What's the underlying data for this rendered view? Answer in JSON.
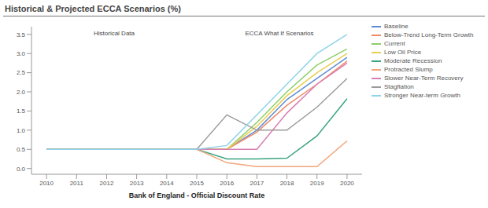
{
  "chart_data": {
    "type": "line",
    "title": "Historical & Projected ECCA Scenarios (%)",
    "x_label": "Bank of England - Official Discount Rate",
    "annotations": [
      "Historical Data",
      "ECCA What If Scenarios"
    ],
    "x": [
      2010,
      2011,
      2012,
      2013,
      2014,
      2015,
      2016,
      2017,
      2018,
      2019,
      2020
    ],
    "xlim": [
      2009.5,
      2020.5
    ],
    "xticks": [
      2010,
      2011,
      2012,
      2013,
      2014,
      2015,
      2016,
      2017,
      2018,
      2019,
      2020
    ],
    "ylim": [
      -0.15,
      3.7
    ],
    "yticks": [
      {
        "value": 0,
        "label": "0.0"
      },
      0.5,
      {
        "value": 1,
        "label": "1.0"
      },
      1.5,
      {
        "value": 2,
        "label": "2.0"
      },
      2.5,
      {
        "value": 3,
        "label": "3.0"
      },
      3.5
    ],
    "grid": false,
    "legend": "right",
    "series": [
      {
        "name": "Baseline",
        "color": "#5f8dd3",
        "values": [
          0.5,
          0.5,
          0.5,
          0.5,
          0.5,
          0.5,
          0.5,
          1.0,
          1.8,
          2.35,
          2.9
        ]
      },
      {
        "name": "Below-Trend Long-Term Growth",
        "color": "#f08a6a",
        "values": [
          0.5,
          0.5,
          0.5,
          0.5,
          0.5,
          0.5,
          0.5,
          0.95,
          1.65,
          2.2,
          2.8
        ]
      },
      {
        "name": "Current",
        "color": "#8dcf6a",
        "values": [
          0.5,
          0.5,
          0.5,
          0.5,
          0.5,
          0.5,
          0.5,
          1.2,
          2.0,
          2.7,
          3.12
        ]
      },
      {
        "name": "Low Oil Price",
        "color": "#e8cf4f",
        "values": [
          0.5,
          0.5,
          0.5,
          0.5,
          0.5,
          0.5,
          0.5,
          1.1,
          1.9,
          2.5,
          3.0
        ]
      },
      {
        "name": "Moderate Recession",
        "color": "#3aa57e",
        "values": [
          0.5,
          0.5,
          0.5,
          0.5,
          0.5,
          0.5,
          0.25,
          0.25,
          0.27,
          0.85,
          1.82
        ]
      },
      {
        "name": "Protracted Slump",
        "color": "#f2a47a",
        "values": [
          0.5,
          0.5,
          0.5,
          0.5,
          0.5,
          0.5,
          0.15,
          0.05,
          0.05,
          0.05,
          0.72
        ]
      },
      {
        "name": "Slower Near-Term Recovery",
        "color": "#d77fb3",
        "values": [
          0.5,
          0.5,
          0.5,
          0.5,
          0.5,
          0.5,
          0.5,
          0.5,
          1.45,
          2.2,
          2.75
        ]
      },
      {
        "name": "Stagflation",
        "color": "#9b9b9b",
        "values": [
          0.5,
          0.5,
          0.5,
          0.5,
          0.5,
          0.5,
          1.4,
          1.0,
          1.0,
          1.6,
          2.35
        ]
      },
      {
        "name": "Stronger Near-term Growth",
        "color": "#8fd3e8",
        "values": [
          0.5,
          0.5,
          0.5,
          0.5,
          0.5,
          0.5,
          0.6,
          1.4,
          2.2,
          3.0,
          3.5
        ]
      }
    ]
  }
}
